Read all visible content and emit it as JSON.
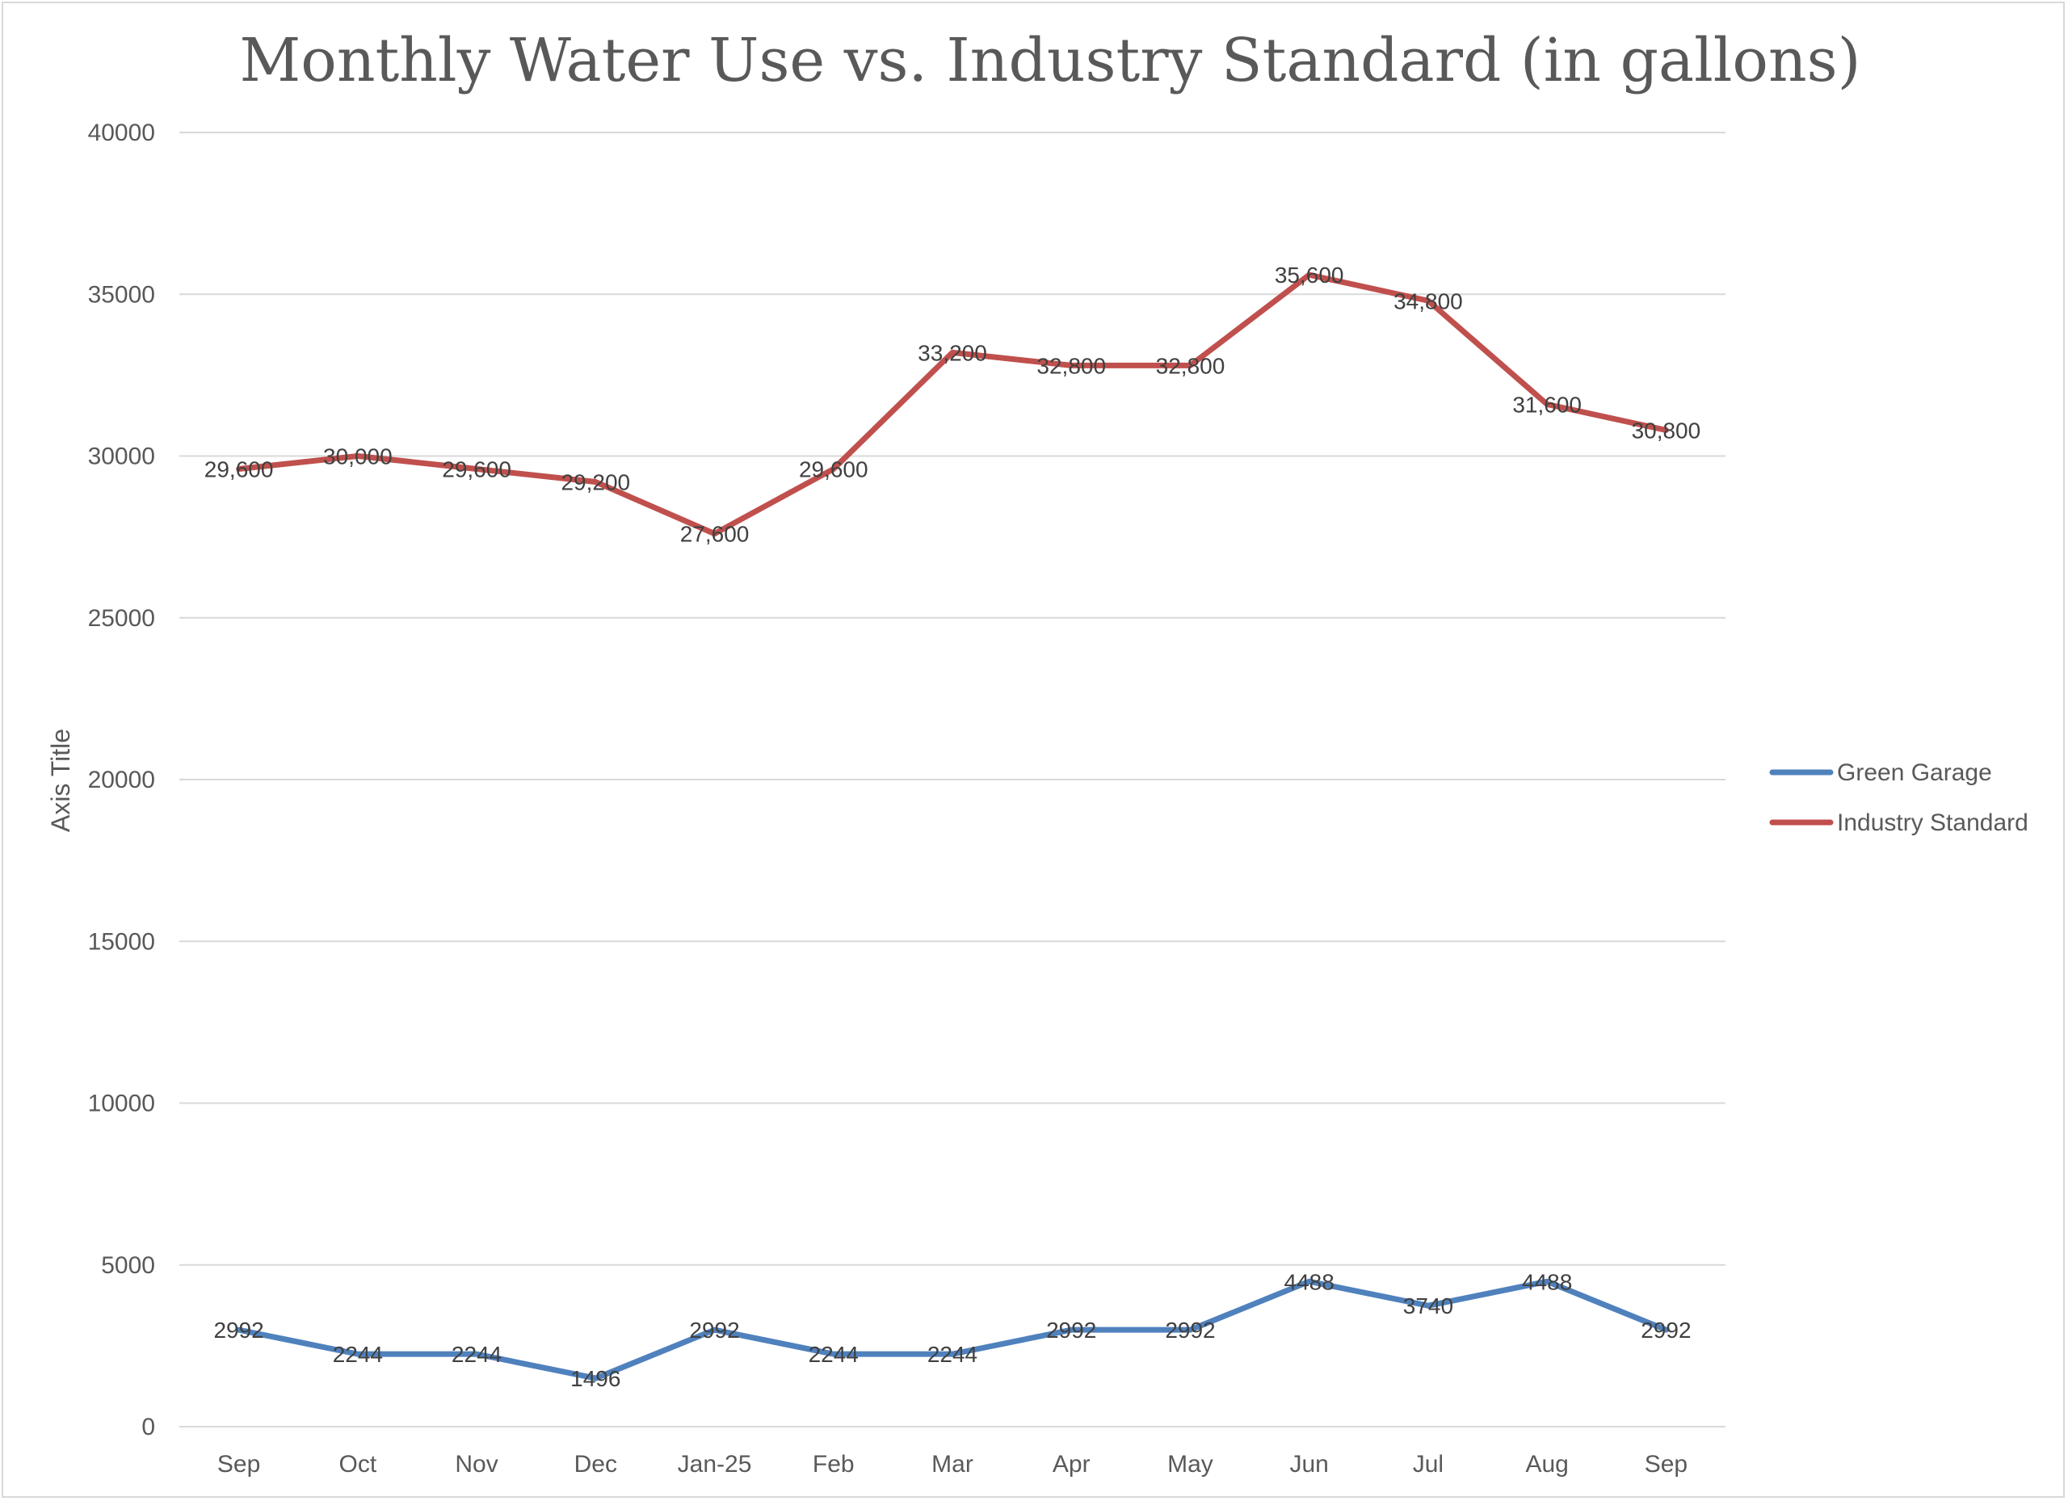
{
  "chart_data": {
    "type": "line",
    "title": "Monthly Water Use vs. Industry Standard (in gallons)",
    "ylabel": "Axis Title",
    "xlabel": "",
    "ylim": [
      0,
      40000
    ],
    "yticks": [
      0,
      5000,
      10000,
      15000,
      20000,
      25000,
      30000,
      35000,
      40000
    ],
    "ytick_labels": [
      "0",
      "5000",
      "10000",
      "15000",
      "20000",
      "25000",
      "30000",
      "35000",
      "40000"
    ],
    "grid": true,
    "legend_position": "right",
    "categories": [
      "Sep",
      "Oct",
      "Nov",
      "Dec",
      "Jan-25",
      "Feb",
      "Mar",
      "Apr",
      "May",
      "Jun",
      "Jul",
      "Aug",
      "Sep"
    ],
    "series": [
      {
        "name": "Green Garage",
        "color": "#4f81bd",
        "values": [
          2992,
          2244,
          2244,
          1496,
          2992,
          2244,
          2244,
          2992,
          2992,
          4488,
          3740,
          4488,
          2992
        ],
        "labels": [
          "2992",
          "2244",
          "2244",
          "1496",
          "2992",
          "2244",
          "2244",
          "2992",
          "2992",
          "4488",
          "3740",
          "4488",
          "2992"
        ]
      },
      {
        "name": "Industry Standard",
        "color": "#c0504d",
        "values": [
          29600,
          30000,
          29600,
          29200,
          27600,
          29600,
          33200,
          32800,
          32800,
          35600,
          34800,
          31600,
          30800
        ],
        "labels": [
          "29,600",
          "30,000",
          "29,600",
          "29,200",
          "27,600",
          "29,600",
          "33,200",
          "32,800",
          "32,800",
          "35,600",
          "34,800",
          "31,600",
          "30,800"
        ]
      }
    ]
  }
}
